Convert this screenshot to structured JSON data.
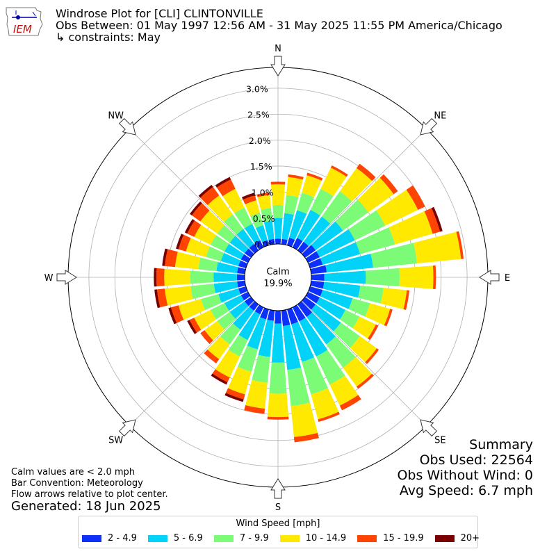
{
  "title": {
    "line1": "Windrose Plot for [CLI] CLINTONVILLE",
    "line2": "Obs Between: 01 May 1997 12:56 AM - 31 May 2025 11:55 PM America/Chicago",
    "line3": "↳ constraints: May"
  },
  "logo_text": "IEM",
  "notes": {
    "calm_note": "Calm values are < 2.0 mph",
    "bar_convention": "Bar Convention: Meteorology",
    "flow_note": "Flow arrows relative to plot center.",
    "generated": "Generated: 18 Jun 2025"
  },
  "summary": {
    "heading": "Summary",
    "obs_used": "Obs Used: 22564",
    "obs_without_wind": "Obs Without Wind: 0",
    "avg_speed": "Avg Speed: 6.7 mph"
  },
  "chart_data": {
    "type": "windrose",
    "calm_label": "Calm",
    "calm_value": "19.9%",
    "direction_labels": [
      "N",
      "NE",
      "E",
      "SE",
      "S",
      "SW",
      "W",
      "NW"
    ],
    "radial_ticks": [
      "0.0%",
      "0.5%",
      "1.0%",
      "1.5%",
      "2.0%",
      "2.5%",
      "3.0%"
    ],
    "rmax_percent": 3.4,
    "legend_title": "Wind Speed [mph]",
    "series": [
      {
        "name": "2 - 4.9",
        "color": "#0c2ffa"
      },
      {
        "name": "5 - 6.9",
        "color": "#00d3f7"
      },
      {
        "name": "7 - 9.9",
        "color": "#7cfb77"
      },
      {
        "name": "10 - 14.9",
        "color": "#ffe900"
      },
      {
        "name": "15 - 19.9",
        "color": "#ff4300"
      },
      {
        "name": "20+",
        "color": "#7a0000"
      }
    ],
    "bin_unit": "percent",
    "bins": [
      {
        "dir": 0,
        "values": [
          0.1,
          0.4,
          0.25,
          0.4,
          0.05,
          0.0
        ]
      },
      {
        "dir": 10,
        "values": [
          0.1,
          0.5,
          0.35,
          0.35,
          0.05,
          0.0
        ]
      },
      {
        "dir": 20,
        "values": [
          0.15,
          0.55,
          0.35,
          0.35,
          0.05,
          0.0
        ]
      },
      {
        "dir": 30,
        "values": [
          0.2,
          0.6,
          0.45,
          0.45,
          0.05,
          0.0
        ]
      },
      {
        "dir": 40,
        "values": [
          0.2,
          0.6,
          0.6,
          0.55,
          0.1,
          0.0
        ]
      },
      {
        "dir": 50,
        "values": [
          0.25,
          0.65,
          0.6,
          0.6,
          0.1,
          0.0
        ]
      },
      {
        "dir": 60,
        "values": [
          0.25,
          0.75,
          0.65,
          0.7,
          0.15,
          0.0
        ]
      },
      {
        "dir": 70,
        "values": [
          0.25,
          0.75,
          0.7,
          0.75,
          0.15,
          0.05
        ]
      },
      {
        "dir": 80,
        "values": [
          0.3,
          0.9,
          0.85,
          0.85,
          0.05,
          0.0
        ]
      },
      {
        "dir": 90,
        "values": [
          0.25,
          0.8,
          0.65,
          0.65,
          0.05,
          0.0
        ]
      },
      {
        "dir": 100,
        "values": [
          0.25,
          0.7,
          0.45,
          0.45,
          0.05,
          0.0
        ]
      },
      {
        "dir": 110,
        "values": [
          0.25,
          0.6,
          0.35,
          0.4,
          0.05,
          0.0
        ]
      },
      {
        "dir": 120,
        "values": [
          0.25,
          0.55,
          0.3,
          0.35,
          0.05,
          0.0
        ]
      },
      {
        "dir": 130,
        "values": [
          0.25,
          0.6,
          0.45,
          0.4,
          0.05,
          0.0
        ]
      },
      {
        "dir": 140,
        "values": [
          0.3,
          0.65,
          0.55,
          0.45,
          0.05,
          0.0
        ]
      },
      {
        "dir": 150,
        "values": [
          0.3,
          0.75,
          0.6,
          0.45,
          0.1,
          0.0
        ]
      },
      {
        "dir": 160,
        "values": [
          0.3,
          0.75,
          0.65,
          0.5,
          0.05,
          0.0
        ]
      },
      {
        "dir": 170,
        "values": [
          0.3,
          0.85,
          0.7,
          0.6,
          0.1,
          0.0
        ]
      },
      {
        "dir": 180,
        "values": [
          0.25,
          0.75,
          0.6,
          0.45,
          0.05,
          0.0
        ]
      },
      {
        "dir": 190,
        "values": [
          0.2,
          0.7,
          0.5,
          0.5,
          0.1,
          0.0
        ]
      },
      {
        "dir": 200,
        "values": [
          0.2,
          0.6,
          0.45,
          0.45,
          0.1,
          0.05
        ]
      },
      {
        "dir": 210,
        "values": [
          0.15,
          0.55,
          0.35,
          0.45,
          0.1,
          0.05
        ]
      },
      {
        "dir": 220,
        "values": [
          0.15,
          0.45,
          0.35,
          0.35,
          0.1,
          0.0
        ]
      },
      {
        "dir": 230,
        "values": [
          0.15,
          0.35,
          0.3,
          0.3,
          0.1,
          0.0
        ]
      },
      {
        "dir": 240,
        "values": [
          0.15,
          0.35,
          0.3,
          0.35,
          0.1,
          0.05
        ]
      },
      {
        "dir": 250,
        "values": [
          0.15,
          0.4,
          0.35,
          0.45,
          0.15,
          0.05
        ]
      },
      {
        "dir": 260,
        "values": [
          0.15,
          0.45,
          0.45,
          0.5,
          0.15,
          0.05
        ]
      },
      {
        "dir": 270,
        "values": [
          0.15,
          0.45,
          0.45,
          0.5,
          0.15,
          0.05
        ]
      },
      {
        "dir": 280,
        "values": [
          0.15,
          0.4,
          0.35,
          0.45,
          0.2,
          0.05
        ]
      },
      {
        "dir": 290,
        "values": [
          0.15,
          0.35,
          0.3,
          0.4,
          0.15,
          0.05
        ]
      },
      {
        "dir": 300,
        "values": [
          0.15,
          0.35,
          0.3,
          0.35,
          0.15,
          0.05
        ]
      },
      {
        "dir": 310,
        "values": [
          0.15,
          0.35,
          0.3,
          0.4,
          0.2,
          0.05
        ]
      },
      {
        "dir": 320,
        "values": [
          0.15,
          0.35,
          0.35,
          0.45,
          0.2,
          0.05
        ]
      },
      {
        "dir": 330,
        "values": [
          0.15,
          0.35,
          0.35,
          0.4,
          0.2,
          0.05
        ]
      },
      {
        "dir": 340,
        "values": [
          0.1,
          0.3,
          0.25,
          0.25,
          0.1,
          0.05
        ]
      },
      {
        "dir": 350,
        "values": [
          0.1,
          0.35,
          0.25,
          0.25,
          0.05,
          0.0
        ]
      }
    ]
  }
}
